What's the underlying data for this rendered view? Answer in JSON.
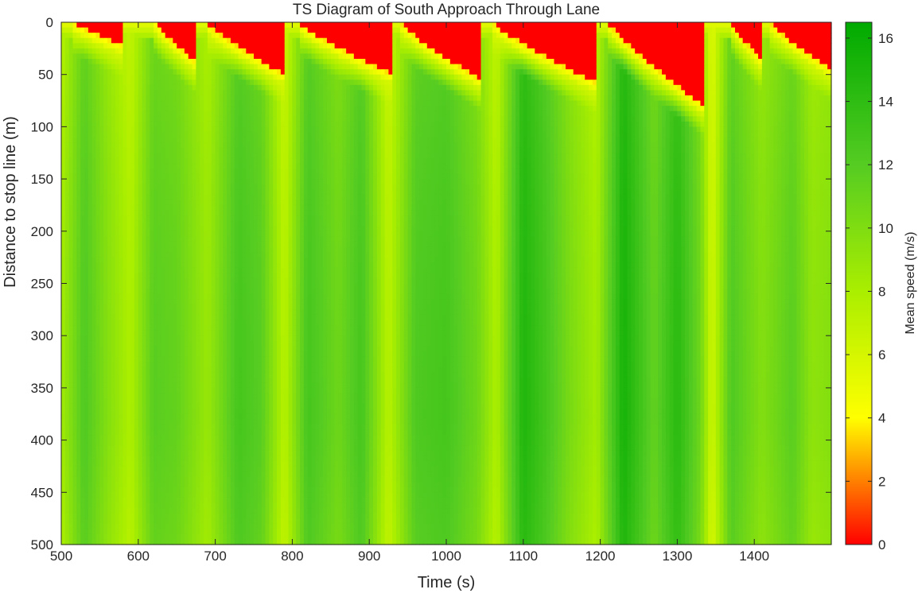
{
  "chart_data": {
    "type": "heatmap",
    "title": "TS Diagram of South Approach Through Lane",
    "xlabel": "Time (s)",
    "ylabel": "Distance to stop line (m)",
    "colorbar_label": "Mean speed (m/s)",
    "xlim": [
      500,
      1500
    ],
    "ylim": [
      0,
      500
    ],
    "y_reversed": true,
    "clim": [
      0,
      16.5
    ],
    "x_ticks": [
      500,
      600,
      700,
      800,
      900,
      1000,
      1100,
      1200,
      1300,
      1400
    ],
    "x_tick_labels": [
      "500",
      "600",
      "700",
      "800",
      "900",
      "1000",
      "1100",
      "1200",
      "1300",
      "1400"
    ],
    "y_ticks": [
      0,
      50,
      100,
      150,
      200,
      250,
      300,
      350,
      400,
      450,
      500
    ],
    "y_tick_labels": [
      "0",
      "50",
      "100",
      "150",
      "200",
      "250",
      "300",
      "350",
      "400",
      "450",
      "500"
    ],
    "colorbar_ticks": [
      0,
      2,
      4,
      6,
      8,
      10,
      12,
      14,
      16
    ],
    "colorbar_tick_labels": [
      "0",
      "2",
      "4",
      "6",
      "8",
      "10",
      "12",
      "14",
      "16"
    ],
    "colormap": [
      {
        "value": 0,
        "color": "#ff0000"
      },
      {
        "value": 4,
        "color": "#ffff00"
      },
      {
        "value": 8,
        "color": "#aaee00"
      },
      {
        "value": 12,
        "color": "#55cc22"
      },
      {
        "value": 16.5,
        "color": "#00aa00"
      }
    ],
    "grid": false,
    "cell_size": {
      "time_s": 5,
      "distance_m": 5
    },
    "queues": [
      {
        "start": 515,
        "end": 580,
        "max_distance": 22
      },
      {
        "start": 622,
        "end": 675,
        "max_distance": 38
      },
      {
        "start": 688,
        "end": 790,
        "max_distance": 50
      },
      {
        "start": 808,
        "end": 930,
        "max_distance": 50
      },
      {
        "start": 940,
        "end": 1045,
        "max_distance": 55
      },
      {
        "start": 1060,
        "end": 1195,
        "max_distance": 58
      },
      {
        "start": 1210,
        "end": 1335,
        "max_distance": 80
      },
      {
        "start": 1370,
        "end": 1408,
        "max_distance": 35
      },
      {
        "start": 1420,
        "end": 1500,
        "max_distance": 45
      }
    ],
    "bands": [
      {
        "time": 500,
        "speed": 8.5
      },
      {
        "time": 530,
        "speed": 12.5
      },
      {
        "time": 560,
        "speed": 10
      },
      {
        "time": 590,
        "speed": 8
      },
      {
        "time": 620,
        "speed": 12
      },
      {
        "time": 650,
        "speed": 11.5
      },
      {
        "time": 690,
        "speed": 9
      },
      {
        "time": 730,
        "speed": 13
      },
      {
        "time": 760,
        "speed": 12
      },
      {
        "time": 790,
        "speed": 7.5
      },
      {
        "time": 820,
        "speed": 13
      },
      {
        "time": 860,
        "speed": 11
      },
      {
        "time": 890,
        "speed": 13
      },
      {
        "time": 925,
        "speed": 7.5
      },
      {
        "time": 960,
        "speed": 12.5
      },
      {
        "time": 1000,
        "speed": 13
      },
      {
        "time": 1040,
        "speed": 11
      },
      {
        "time": 1065,
        "speed": 8
      },
      {
        "time": 1100,
        "speed": 15
      },
      {
        "time": 1130,
        "speed": 13
      },
      {
        "time": 1160,
        "speed": 10.5
      },
      {
        "time": 1195,
        "speed": 8.5
      },
      {
        "time": 1230,
        "speed": 15.5
      },
      {
        "time": 1270,
        "speed": 11.5
      },
      {
        "time": 1300,
        "speed": 14.5
      },
      {
        "time": 1330,
        "speed": 11
      },
      {
        "time": 1345,
        "speed": 6.5
      },
      {
        "time": 1370,
        "speed": 12.5
      },
      {
        "time": 1410,
        "speed": 10
      },
      {
        "time": 1450,
        "speed": 12
      },
      {
        "time": 1475,
        "speed": 9.5
      },
      {
        "time": 1500,
        "speed": 10
      }
    ]
  }
}
